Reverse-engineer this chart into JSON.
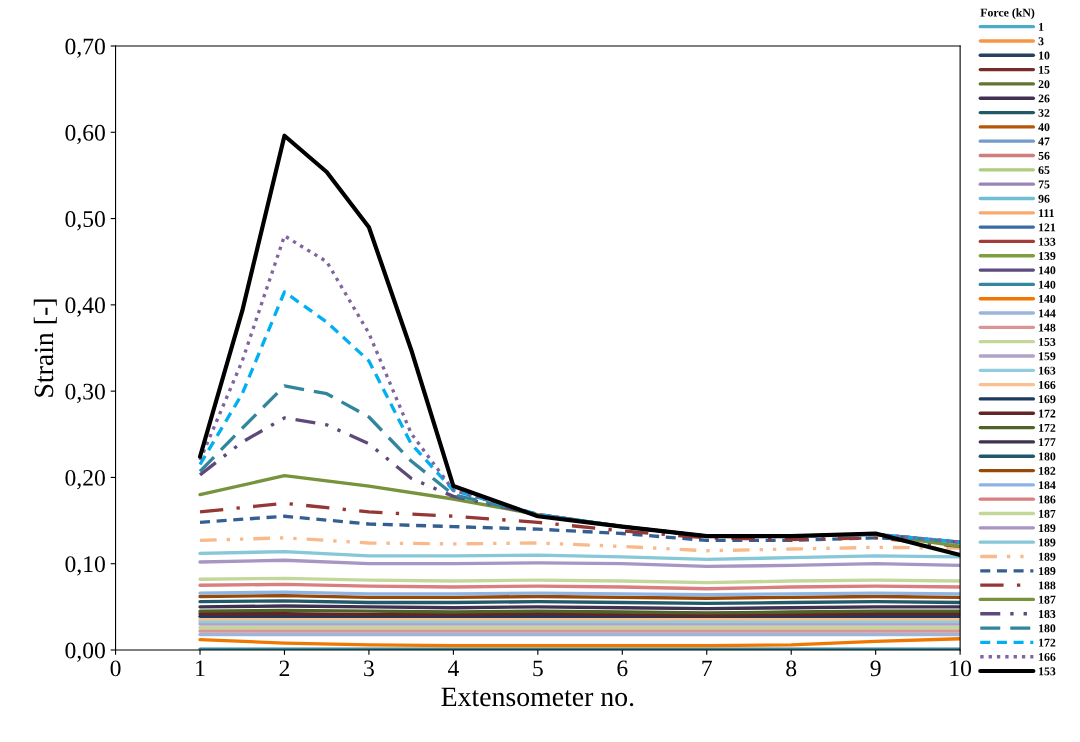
{
  "chart_data": {
    "type": "line",
    "xlabel": "Extensometer no.",
    "ylabel": "Strain [-]",
    "legend_title": "Force (kN)",
    "legend": "right",
    "grid": false,
    "x": [
      1,
      2,
      3,
      4,
      5,
      6,
      7,
      8,
      9,
      10
    ],
    "xlim": [
      0,
      10
    ],
    "xticks": [
      0,
      1,
      2,
      3,
      4,
      5,
      6,
      7,
      8,
      9,
      10
    ],
    "ylim": [
      0,
      0.7
    ],
    "yticks": [
      {
        "value": 0,
        "label": "0,00"
      },
      {
        "value": 0.1,
        "label": "0,10"
      },
      {
        "value": 0.2,
        "label": "0,20"
      },
      {
        "value": 0.3,
        "label": "0,30"
      },
      {
        "value": 0.4,
        "label": "0,40"
      },
      {
        "value": 0.5,
        "label": "0,50"
      },
      {
        "value": 0.6,
        "label": "0,60"
      },
      {
        "value": 0.7,
        "label": "0,70"
      }
    ],
    "series": [
      {
        "name": "1",
        "color": "#4bacc6",
        "values": [
          null,
          null,
          null,
          null,
          null,
          null,
          null,
          null,
          null,
          null
        ]
      },
      {
        "name": "3",
        "color": "#f79646",
        "values": [
          null,
          null,
          null,
          null,
          null,
          null,
          null,
          null,
          null,
          null
        ]
      },
      {
        "name": "10",
        "color": "#254061",
        "values": [
          null,
          null,
          null,
          null,
          null,
          null,
          null,
          null,
          null,
          null
        ]
      },
      {
        "name": "15",
        "color": "#772c2a",
        "values": [
          null,
          null,
          null,
          null,
          null,
          null,
          null,
          null,
          null,
          null
        ]
      },
      {
        "name": "20",
        "color": "#5f7530",
        "values": [
          null,
          null,
          null,
          null,
          null,
          null,
          null,
          null,
          null,
          null
        ]
      },
      {
        "name": "26",
        "color": "#403152",
        "values": [
          null,
          null,
          null,
          null,
          null,
          null,
          null,
          null,
          null,
          null
        ]
      },
      {
        "name": "32",
        "color": "#215967",
        "values": [
          null,
          null,
          null,
          null,
          null,
          null,
          null,
          null,
          null,
          null
        ]
      },
      {
        "name": "40",
        "color": "#b65708",
        "values": [
          null,
          null,
          null,
          null,
          null,
          null,
          null,
          null,
          null,
          null
        ]
      },
      {
        "name": "47",
        "color": "#729aca",
        "values": [
          null,
          null,
          null,
          null,
          null,
          null,
          null,
          null,
          null,
          null
        ]
      },
      {
        "name": "56",
        "color": "#d07d7b",
        "values": [
          null,
          null,
          null,
          null,
          null,
          null,
          null,
          null,
          null,
          null
        ]
      },
      {
        "name": "65",
        "color": "#b0cc7e",
        "values": [
          null,
          null,
          null,
          null,
          null,
          null,
          null,
          null,
          null,
          null
        ]
      },
      {
        "name": "75",
        "color": "#9a85b6",
        "values": [
          null,
          null,
          null,
          null,
          null,
          null,
          null,
          null,
          null,
          null
        ]
      },
      {
        "name": "96",
        "color": "#6fbfd4",
        "values": [
          null,
          null,
          null,
          null,
          null,
          null,
          null,
          null,
          null,
          null
        ]
      },
      {
        "name": "111",
        "color": "#f9a96b",
        "values": [
          null,
          null,
          null,
          null,
          null,
          null,
          null,
          null,
          null,
          null
        ]
      },
      {
        "name": "121",
        "color": "#3a6ba5",
        "values": [
          null,
          null,
          null,
          null,
          null,
          null,
          null,
          null,
          null,
          null
        ]
      },
      {
        "name": "133",
        "color": "#a23b39",
        "values": [
          null,
          null,
          null,
          null,
          null,
          null,
          null,
          null,
          null,
          null
        ]
      },
      {
        "name": "139",
        "color": "#7f9e3d",
        "values": [
          null,
          null,
          null,
          null,
          null,
          null,
          null,
          null,
          null,
          null
        ]
      },
      {
        "name": "140",
        "color": "#5e4a7e",
        "values": [
          null,
          null,
          null,
          null,
          null,
          null,
          null,
          null,
          null,
          null
        ]
      },
      {
        "name": "140",
        "color": "#32879e",
        "values": [
          0.001,
          0.001,
          0.001,
          0.001,
          0.001,
          0.001,
          0.001,
          0.001,
          0.001,
          0.001
        ]
      },
      {
        "name": "140",
        "color": "#f07800",
        "values": [
          0.012,
          0.008,
          0.006,
          0.005,
          0.005,
          0.005,
          0.005,
          0.006,
          0.01,
          0.013
        ]
      },
      {
        "name": "144",
        "color": "#9bb6da",
        "values": [
          0.018,
          0.018,
          0.018,
          0.018,
          0.018,
          0.018,
          0.018,
          0.018,
          0.018,
          0.018
        ]
      },
      {
        "name": "148",
        "color": "#d99694",
        "values": [
          0.022,
          0.022,
          0.022,
          0.022,
          0.022,
          0.022,
          0.022,
          0.022,
          0.022,
          0.022
        ]
      },
      {
        "name": "153",
        "color": "#c3d69b",
        "values": [
          0.026,
          0.026,
          0.026,
          0.026,
          0.026,
          0.026,
          0.026,
          0.026,
          0.026,
          0.026
        ]
      },
      {
        "name": "159",
        "color": "#b3a2c7",
        "values": [
          0.03,
          0.03,
          0.03,
          0.03,
          0.03,
          0.03,
          0.03,
          0.03,
          0.03,
          0.03
        ]
      },
      {
        "name": "163",
        "color": "#93cddd",
        "values": [
          0.033,
          0.033,
          0.033,
          0.033,
          0.033,
          0.033,
          0.033,
          0.033,
          0.033,
          0.033
        ]
      },
      {
        "name": "166",
        "color": "#fac090",
        "values": [
          0.036,
          0.036,
          0.036,
          0.036,
          0.036,
          0.036,
          0.036,
          0.036,
          0.036,
          0.036
        ]
      },
      {
        "name": "169",
        "color": "#1f3a5f",
        "values": [
          0.039,
          0.039,
          0.039,
          0.039,
          0.039,
          0.039,
          0.039,
          0.039,
          0.039,
          0.039
        ]
      },
      {
        "name": "172",
        "color": "#632523",
        "values": [
          0.042,
          0.042,
          0.041,
          0.041,
          0.042,
          0.041,
          0.04,
          0.041,
          0.042,
          0.042
        ]
      },
      {
        "name": "172",
        "color": "#4f6228",
        "values": [
          0.045,
          0.046,
          0.045,
          0.044,
          0.045,
          0.044,
          0.043,
          0.044,
          0.045,
          0.045
        ]
      },
      {
        "name": "177",
        "color": "#3f3151",
        "values": [
          0.05,
          0.051,
          0.05,
          0.049,
          0.05,
          0.049,
          0.048,
          0.049,
          0.05,
          0.05
        ]
      },
      {
        "name": "180",
        "color": "#215968",
        "values": [
          0.056,
          0.057,
          0.055,
          0.055,
          0.056,
          0.055,
          0.054,
          0.055,
          0.056,
          0.055
        ]
      },
      {
        "name": "182",
        "color": "#984807",
        "values": [
          0.062,
          0.063,
          0.061,
          0.061,
          0.062,
          0.061,
          0.06,
          0.061,
          0.062,
          0.061
        ]
      },
      {
        "name": "184",
        "color": "#8eb4e3",
        "values": [
          0.066,
          0.067,
          0.065,
          0.065,
          0.066,
          0.065,
          0.064,
          0.065,
          0.066,
          0.065
        ]
      },
      {
        "name": "186",
        "color": "#da7f7f",
        "values": [
          0.075,
          0.076,
          0.074,
          0.073,
          0.074,
          0.073,
          0.071,
          0.073,
          0.074,
          0.073
        ]
      },
      {
        "name": "187",
        "color": "#c4d79b",
        "values": [
          0.082,
          0.083,
          0.081,
          0.08,
          0.081,
          0.08,
          0.078,
          0.08,
          0.081,
          0.08
        ]
      },
      {
        "name": "189",
        "color": "#a796c4",
        "values": [
          0.102,
          0.104,
          0.1,
          0.1,
          0.101,
          0.1,
          0.097,
          0.098,
          0.1,
          0.098
        ]
      },
      {
        "name": "189",
        "color": "#86c7d8",
        "values": [
          0.112,
          0.114,
          0.109,
          0.109,
          0.11,
          0.108,
          0.105,
          0.107,
          0.109,
          0.108
        ]
      },
      {
        "name": "189",
        "color": "#fab98a",
        "line_style": "dashdotdot",
        "values": [
          0.127,
          0.13,
          0.124,
          0.123,
          0.124,
          0.12,
          0.115,
          0.117,
          0.119,
          0.118
        ]
      },
      {
        "name": "189",
        "color": "#365f91",
        "line_style": "dashed",
        "values": [
          0.148,
          0.155,
          0.146,
          0.143,
          0.14,
          0.135,
          0.127,
          0.127,
          0.13,
          0.125
        ]
      },
      {
        "name": "188",
        "color": "#953735",
        "line_style": "longdashdot",
        "values": [
          0.16,
          0.17,
          0.16,
          0.155,
          0.148,
          0.138,
          0.13,
          0.128,
          0.13,
          0.12
        ]
      },
      {
        "name": "187",
        "color": "#77933c",
        "values": [
          0.18,
          0.202,
          0.19,
          0.175,
          0.157,
          0.143,
          0.132,
          0.132,
          0.134,
          0.12
        ]
      },
      {
        "name": "183",
        "color": "#5f497a",
        "line_style": "dashdot",
        "x": [
          1,
          1.5,
          2,
          2.5,
          3,
          3.5,
          4,
          5,
          6,
          7,
          8,
          9,
          10
        ],
        "values": [
          0.203,
          0.241,
          0.269,
          0.261,
          0.239,
          0.199,
          0.178,
          0.157,
          0.143,
          0.132,
          0.132,
          0.134,
          0.125
        ]
      },
      {
        "name": "180",
        "color": "#31859c",
        "line_style": "longdash",
        "x": [
          1,
          1.5,
          2,
          2.5,
          3,
          3.5,
          4,
          5,
          6,
          7,
          8,
          9,
          10
        ],
        "values": [
          0.207,
          0.257,
          0.306,
          0.297,
          0.27,
          0.219,
          0.18,
          0.157,
          0.143,
          0.132,
          0.132,
          0.134,
          0.125
        ]
      },
      {
        "name": "172",
        "color": "#00b0f0",
        "line_style": "dashed",
        "x": [
          1,
          1.5,
          2,
          2.5,
          3,
          3.5,
          4,
          5,
          6,
          7,
          8,
          9,
          10
        ],
        "values": [
          0.215,
          0.297,
          0.415,
          0.38,
          0.335,
          0.239,
          0.185,
          0.157,
          0.143,
          0.132,
          0.132,
          0.134,
          0.125
        ]
      },
      {
        "name": "166",
        "color": "#8064a2",
        "line_style": "dotted",
        "x": [
          1,
          1.5,
          2,
          2.5,
          3,
          3.5,
          4,
          5,
          6,
          7,
          8,
          9,
          10
        ],
        "values": [
          0.22,
          0.335,
          0.48,
          0.45,
          0.367,
          0.251,
          0.185,
          0.157,
          0.143,
          0.132,
          0.132,
          0.134,
          0.125
        ]
      },
      {
        "name": "153",
        "color": "#000000",
        "x": [
          1,
          1.5,
          2,
          2.5,
          3,
          3.5,
          4,
          5,
          6,
          7,
          8,
          9,
          10
        ],
        "values": [
          0.224,
          0.393,
          0.596,
          0.554,
          0.49,
          0.348,
          0.19,
          0.155,
          0.143,
          0.132,
          0.132,
          0.135,
          0.11
        ]
      }
    ]
  }
}
